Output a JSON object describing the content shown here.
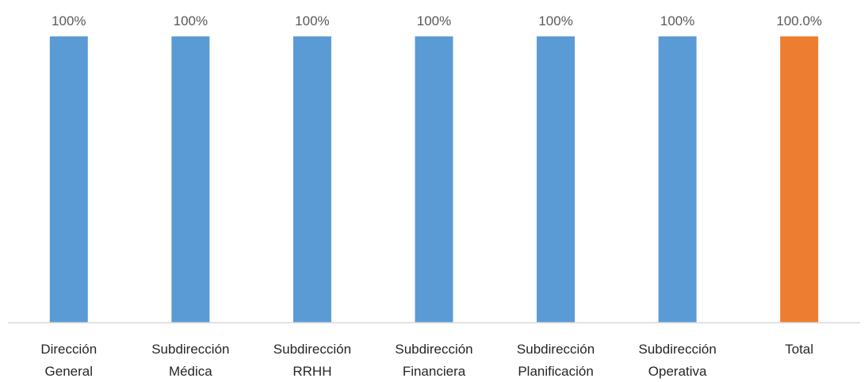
{
  "chart_data": {
    "type": "bar",
    "categories": [
      [
        "Dirección",
        "General"
      ],
      [
        "Subdirección",
        "Médica"
      ],
      [
        "Subdirección",
        "RRHH"
      ],
      [
        "Subdirección",
        "Financiera"
      ],
      [
        "Subdirección",
        "Planificación"
      ],
      [
        "Subdirección",
        "Operativa"
      ],
      [
        "Total"
      ]
    ],
    "values": [
      100,
      100,
      100,
      100,
      100,
      100,
      100
    ],
    "data_labels": [
      "100%",
      "100%",
      "100%",
      "100%",
      "100%",
      "100%",
      "100.0%"
    ],
    "bar_colors": [
      "#5b9bd5",
      "#5b9bd5",
      "#5b9bd5",
      "#5b9bd5",
      "#5b9bd5",
      "#5b9bd5",
      "#ed7d31"
    ],
    "ylim": [
      0,
      100
    ],
    "grid": false,
    "legend": "none"
  }
}
